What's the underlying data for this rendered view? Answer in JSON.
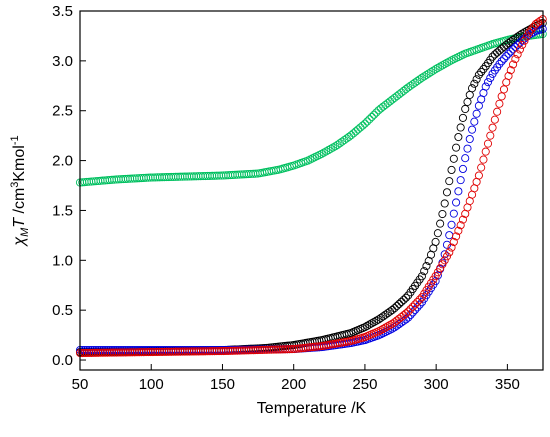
{
  "chart_data": {
    "type": "scatter",
    "xlabel": "Temperature /K",
    "ylabel": {
      "chi": "χ",
      "chi_sub": "M",
      "T": "T",
      "units_a": " /cm",
      "sup3": "3",
      "units_b": "Kmol",
      "sup_neg1": "-1"
    },
    "xlim": [
      50,
      375
    ],
    "ylim": [
      -0.1,
      3.5
    ],
    "x_ticks": [
      50,
      100,
      150,
      200,
      250,
      300,
      350
    ],
    "x_tick_labels": [
      "50",
      "100",
      "150",
      "200",
      "250",
      "300",
      "350"
    ],
    "y_ticks": [
      0.0,
      0.5,
      1.0,
      1.5,
      2.0,
      2.5,
      3.0,
      3.5
    ],
    "y_tick_labels": [
      "0.0",
      "0.5",
      "1.0",
      "1.5",
      "2.0",
      "2.5",
      "3.0",
      "3.5"
    ],
    "grid": false,
    "legend": "none",
    "marker": "open-circle",
    "series": [
      {
        "color": "#00c060",
        "points": [
          [
            50,
            1.78
          ],
          [
            75,
            1.81
          ],
          [
            100,
            1.83
          ],
          [
            125,
            1.84
          ],
          [
            150,
            1.85
          ],
          [
            175,
            1.87
          ],
          [
            190,
            1.91
          ],
          [
            200,
            1.95
          ],
          [
            210,
            2.0
          ],
          [
            220,
            2.07
          ],
          [
            230,
            2.15
          ],
          [
            240,
            2.25
          ],
          [
            250,
            2.37
          ],
          [
            260,
            2.51
          ],
          [
            270,
            2.62
          ],
          [
            280,
            2.73
          ],
          [
            290,
            2.83
          ],
          [
            300,
            2.92
          ],
          [
            310,
            3.0
          ],
          [
            320,
            3.07
          ],
          [
            330,
            3.12
          ],
          [
            340,
            3.17
          ],
          [
            350,
            3.21
          ],
          [
            360,
            3.24
          ],
          [
            375,
            3.27
          ]
        ]
      },
      {
        "color": "#000000",
        "points": [
          [
            50,
            0.08
          ],
          [
            100,
            0.09
          ],
          [
            150,
            0.1
          ],
          [
            180,
            0.12
          ],
          [
            200,
            0.15
          ],
          [
            220,
            0.2
          ],
          [
            240,
            0.27
          ],
          [
            250,
            0.33
          ],
          [
            260,
            0.41
          ],
          [
            270,
            0.51
          ],
          [
            280,
            0.64
          ],
          [
            290,
            0.84
          ],
          [
            295,
            1.0
          ],
          [
            300,
            1.2
          ],
          [
            305,
            1.5
          ],
          [
            310,
            1.85
          ],
          [
            315,
            2.2
          ],
          [
            320,
            2.5
          ],
          [
            325,
            2.72
          ],
          [
            330,
            2.86
          ],
          [
            335,
            2.95
          ],
          [
            340,
            3.05
          ],
          [
            350,
            3.17
          ],
          [
            360,
            3.27
          ],
          [
            370,
            3.35
          ],
          [
            375,
            3.38
          ]
        ]
      },
      {
        "color": "#0000e0",
        "points": [
          [
            50,
            0.1
          ],
          [
            100,
            0.1
          ],
          [
            150,
            0.1
          ],
          [
            200,
            0.11
          ],
          [
            220,
            0.13
          ],
          [
            240,
            0.17
          ],
          [
            250,
            0.2
          ],
          [
            260,
            0.25
          ],
          [
            270,
            0.32
          ],
          [
            280,
            0.42
          ],
          [
            290,
            0.58
          ],
          [
            300,
            0.8
          ],
          [
            305,
            1.0
          ],
          [
            310,
            1.3
          ],
          [
            315,
            1.65
          ],
          [
            320,
            2.0
          ],
          [
            325,
            2.3
          ],
          [
            330,
            2.55
          ],
          [
            335,
            2.75
          ],
          [
            340,
            2.88
          ],
          [
            345,
            2.98
          ],
          [
            350,
            3.06
          ],
          [
            355,
            3.13
          ],
          [
            360,
            3.2
          ],
          [
            365,
            3.26
          ],
          [
            370,
            3.3
          ],
          [
            375,
            3.32
          ]
        ]
      },
      {
        "color": "#e00000",
        "points": [
          [
            50,
            0.07
          ],
          [
            100,
            0.08
          ],
          [
            150,
            0.09
          ],
          [
            200,
            0.11
          ],
          [
            220,
            0.14
          ],
          [
            240,
            0.19
          ],
          [
            250,
            0.23
          ],
          [
            260,
            0.29
          ],
          [
            270,
            0.37
          ],
          [
            280,
            0.48
          ],
          [
            290,
            0.63
          ],
          [
            300,
            0.85
          ],
          [
            310,
            1.1
          ],
          [
            320,
            1.45
          ],
          [
            330,
            1.85
          ],
          [
            335,
            2.1
          ],
          [
            340,
            2.35
          ],
          [
            345,
            2.6
          ],
          [
            350,
            2.82
          ],
          [
            355,
            3.0
          ],
          [
            360,
            3.15
          ],
          [
            365,
            3.28
          ],
          [
            370,
            3.37
          ],
          [
            375,
            3.42
          ]
        ]
      }
    ]
  }
}
